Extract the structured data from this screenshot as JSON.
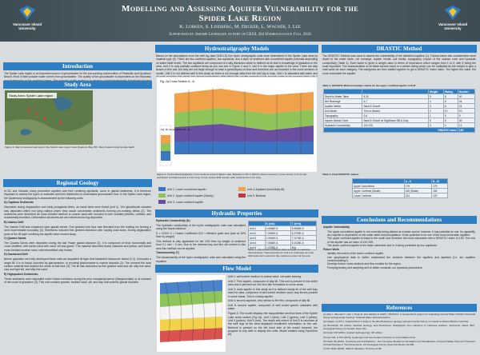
{
  "header": {
    "title": "Modelling and Assessing Aquifer Vulnerability for the",
    "title2": "Spider Lake Region",
    "authors": "K. Lorken, S. Lindberg, M. Decker, L. Wagner, J. Lee",
    "supervisor": "Supervised by Jerome Lesemann as part of GEOL 304 Hydrogeology Fall 2018",
    "logo": "Vancouver Island University"
  },
  "introduction": {
    "heading": "Introduction",
    "paragraphs": [
      "The Spider Lake region is an important source of groundwater for the surrounding communities of Parksville and Qualicum Beach. Most of their potable water comes from groundwater. The quality of the groundwater is dependent on the thickness and stratigraphy of the overlying layers. The purpose of this project is to develop a hydrostratigraphic framework focused on identifying aquifers and aquitards for the area around Spider Lake, BC."
    ]
  },
  "study_area": {
    "heading": "Study Area",
    "map_label": "Study Area: Spider Lake region",
    "caption": "Figure 1. Map of selected well logs in the Spider Lake region near Qualicum Bay, BC. Map created using Google Earth."
  },
  "regional_geology": {
    "heading": "Regional Geology",
    "paragraphs": [
      "In BC and Canada, many productive aquifers and their confining aquitards, occur in glacial sediments. It is therefore important to assess the types of materials and their distribution to understand groundwater flow. In the Spider Lake region, the Quaternary stratigraphy is characterized by the following units:",
      "A) Capilano Sediments",
      "Deposited during deglaciation and early postglacial times, as basal beds were fluvial (unit 1). The glaciofluvial outwash was deposited within low lying valleys where they would concentrate sediments forming pre-existing deltas (2). The sediments were described as cross bedded medium to coarse sand with rounded to well rounded pebbles, cobbles, and occasionally boulders. Deformation structures are also observed during deposition.",
      "B) Vashon Drift",
      "The Vashon Drift was emplaced upon glacial retreat. Fine grained rock flour was liberated from the melting ice forming a semi impermeable boundary (3). Sediments included fine grained diamicton with varying clast sizes. During deglaciation parts of the till layer confining the aquifer were eroded away.",
      "C) Quadra Sands",
      "The Quadra Sands were deposited during the last Fraser glacial advance (2). It is composed of thick horizontally and cross stratified, well sorted sand with minor silt and gravel. The material describes fluvial channels and yellow, well sorted cross bedded medium sand, with intermittent clay lenses.",
      "D) Dashwood Drift",
      "Before glaciation and fully developed these melt-out deposited till layer that blanketed Vancouver Island (2,3). It includes a single till. It is to fluvial, bounded by glaciomarine, or proximal glaciomarine to marine deposits (2). The covered the local surface material that cloaked the areas at that time (3). The till was described as fine grained sand and silt, silty fine sand, clay and light silt, and silty fine sand.",
      "E) Highquaked Sediments:",
      "These sediments were deposited under fluvial conditions during the prior interglacial period (Sangamonian) or at outwash of the onset of glaciation (3). This unit contains gravels, bedded sand, silt, and clay that underlie glacial deposits."
    ]
  },
  "hydrostratigraphy": {
    "heading": "Hydrostratigraphy Models",
    "paragraphs": [
      "Based on the descriptions from the well log data (WELLS) five hydro stratigraphic units were determined in the Spider Lake area by material type (5). There are two confined aquifers, two aquitards, and a layer of sediment with unconfined aquifer potential depending on water table levels. The two aquitards are composed of a silty diamicton which is defined as till due to knowledge of glaciation in the area. Unit 2 is only partially confined being as you can see in Figure 2 and 3. Unit 5 is the major aquifer in the area. There are clay lenses in this unit, but they are not large enough to have a great impact on flow and therefore are not included in the cross sections or model. Unit 3 is not defined well in this study as there is not enough data from the well log to map. Unit 1 is saturated with water and all wells reaching this depth lose almost immediately after hitting this aquifer meaning it has enough water to be pumped when Unit 3 had insufficient supply."
    ],
    "fig_a": "Fig. 2a Cross Section A - A'",
    "fig_b": "Fig. 2b Cross Section B - B'",
    "caption": "Figure 2. Hydro-lithostratigraphic cross sections around Spider Lake. Baseline is 95 m (300 ft) above sea level. Cross section A-A' trends southwest northeast and is 4.4 km long. Cross section B-B' trends north south and is 2 km long.",
    "legend": [
      "Unit 1: Lower unconfined aquifer",
      "Unit 2: Upper confined aquifer (Sandy)",
      "Unit 3: Lower confined aquifer",
      "Unit 4: Aquitard (most likely till)",
      "Unit 5: Bedrock"
    ]
  },
  "hydraulic": {
    "heading": "Hydraulic Properties",
    "subheading": "Hydraulic Conductivity (K)",
    "paragraphs": [
      "The hydraulic conductivity of the hydro stratigraphic units was calculated using the Hazen Method:",
      "K = CD10²   C = Hazen Coefficient   D10 = effective grain size (size at 10% finer by weight)",
      "This method is only applicable for the 10% finer by weight of sediment from 0.1 mm ~ 3 mm. Due to the minimal clay and fine silt content in this area this method can be applied.",
      "Transmissivity (T)",
      "The transmissivity of the hydro stratigraphic units was calculated using the equation",
      "T = Kb   b = depth of aquifer",
      "Transmissivity was calculated using average depth of each hydro stratigraphic unit."
    ],
    "table_head": [
      "",
      "K (m/s)",
      "T (m²/s)"
    ],
    "rows": [
      [
        "Unit 1",
        "1.6966E-5",
        "5.6966E-5"
      ],
      [
        "Unit 2",
        "7.0564E-5",
        "6.3795E-5"
      ],
      [
        "Unit 3",
        "1.9494E-5",
        "7.2276E-5"
      ],
      [
        "Unit 4",
        "7.0564E-5",
        "8.1036E-5"
      ],
      [
        "Unit 5",
        "1.0338E-6",
        "N/A"
      ]
    ],
    "table_caption": "Table 1. Unit 3 had insufficient data on depth to calculate transmissivity. Transmissivity for Unit 4 is estimated as most drill holds don't extend to the maximum extent of the unit."
  },
  "flow": {
    "heading": "Flow Model",
    "paragraphs": [
      "Unit 1: well sorted medium to coarse sand, not water bearing.",
      "Unit 2: First aquifer, composed of silty till. This unit is present in the entire area and is pinched out into lens-like formations in some areas.",
      "Unit 3: main aquifer in this study as it is defined nearly all of the well logs used for data, composed of well sorted medium sand, clay lenses present in some areas. This is a leaky aquifer.",
      "Unit 4: second aquitard, very similar to the first, composed of silty till.",
      "Unit 5: second aquifer, composed of well sorted gravel, saturated with water.",
      "Figure 3. The model displays the equipotential and flow lines of the Spider Lake cross section (Fig 2a). Unit 1 (blue), Unit 2 (green), Unit 3 (white), Unit 4 (yellow), Unit 5 (red). The depth and extent of Unit 5 is unknown at the well logs at the area displayed insufficient information on the unit. Bedrock is present on the left hand side of the model however, the program is only able to display five units. Model created using TopoDrive (6)."
    ]
  },
  "drastic": {
    "heading": "DRASTIC Method",
    "paragraphs": [
      "The DRASTIC Method was used to assess the vulnerability of the identified aquifers (1). Factors taken into consideration were depth to the water table, net recharge, aquifer media, soil media, topography, impact of the vadose zone and hydraulic conductivity (Table 1). Each factor is given a weight value in terms of importance which ranges from 1 to 5, with 5 being the most important. The characteristics of all these factors result in a certain rating which can be multiplied by the weight to give a total value for each category. The categories are then added together to get a DRASTIC Index value. The higher the value, the more vulnerable the aquifer."
    ],
    "table1_caption": "Table 1. DRASTIC Method example matrix for the upper confined aquifer in B-B'",
    "table1_head": [
      "",
      "",
      "Weight",
      "Rating",
      "Number"
    ],
    "table1_rows": [
      [
        "Depth to Water Table",
        "5-30",
        "5",
        "8",
        "40"
      ],
      [
        "Net Recharge",
        "4-7",
        "4",
        "6",
        "24"
      ],
      [
        "Aquifer Media",
        "Sand & Gravel",
        "3",
        "8",
        "24"
      ],
      [
        "Soil Media",
        "Thin or Absent",
        "2",
        "10",
        "20"
      ],
      [
        "Topography",
        "2-6",
        "1",
        "9",
        "9"
      ],
      [
        "Impact Vadose Zone",
        "Sand & Gravel w/ Significant Silt & Clay",
        "5",
        "6",
        "30"
      ],
      [
        "Hydraulic Conductivity",
        "100-700",
        "3",
        "4",
        "12"
      ]
    ],
    "index_label": "DRASTIC Index",
    "index_value": "159",
    "table2_caption": "Table 2. Final DRASTIC indices",
    "table2_head": [
      "",
      "A - A'",
      "B - B'"
    ],
    "table2_rows": [
      [
        "Upper Unconfined",
        "179",
        "179"
      ],
      [
        "Upper Confined (Shale)",
        "149 (Shale)",
        "159"
      ],
      [
        "Lower Confined",
        "124",
        "120"
      ]
    ]
  },
  "conclusions": {
    "heading": "Conclusions and Recommendations",
    "subheading": "Aquifer Vulnerability",
    "paragraphs": [
      "The upper unconfined aquifer is not currently being utilized as a water source however, it has potential as one. Its capability as a aquifer is dependent on the water table and precipitation. It has potential to be one of the most vulnerable aquifers.",
      "The upper confined aquifer is leaky in the south and therefore the most vulnerable with a DRASTIC index of 159. The rest of the aquifer has an index of 149-159.",
      "The lower confined aquifer is the least vulnerable due to it being protected by two aquitards."
    ],
    "future_heading": "Future Work",
    "future": [
      "Identify the extent of the lower confined aquifer.",
      "Use geophysical data to better understand the contacts between the aquifers and aquitard (i.e. are aquifers communicating?).",
      "Develop further cross sections and flow models for the region.",
      "Pumping testing and sampling and to better constrain our hydraulic parameters."
    ]
  },
  "references": {
    "heading": "References",
    "items": [
      "(1) Aller L, Bennett T, Lehr J, Petty R, and Hackett G (1987). DRASTIC: A standardized system for evaluating Ground Water Pollution Potential Using Hydrogeologic Settings. National Water Well Association.",
      "(2) Clague J (1977). Quadra Sand: a study of the late Pleistocene geology and geomorphic history of coastal southwest British Columbia.",
      "(3) Bednarski JM (2014). Surficial Geology and Pleistocene Stratigraphy from Nanaimo to Nanoose Harbour, Vancouver Island (BC). Geological Survey of Canada, Open File.",
      "(4) Fetter CW (2001). Applied Hydrogeology. 4th edition.",
      "(5) Hsu SM, Li WC (2016). Hydrologic and Geomorphic Controls on Groundwater Flow.",
      "(6) Hsieh PA (2001). TopoDrive and ParticleFlow - Two Computer Models for Simulation and Visualization of Ground-Water Flow and Transport of Fluid Particles in Two Dimensions. US Geological Survey Open-File Report 01-286.",
      "(7) BC Wells (2018). WELLS database, Province of BC."
    ]
  }
}
